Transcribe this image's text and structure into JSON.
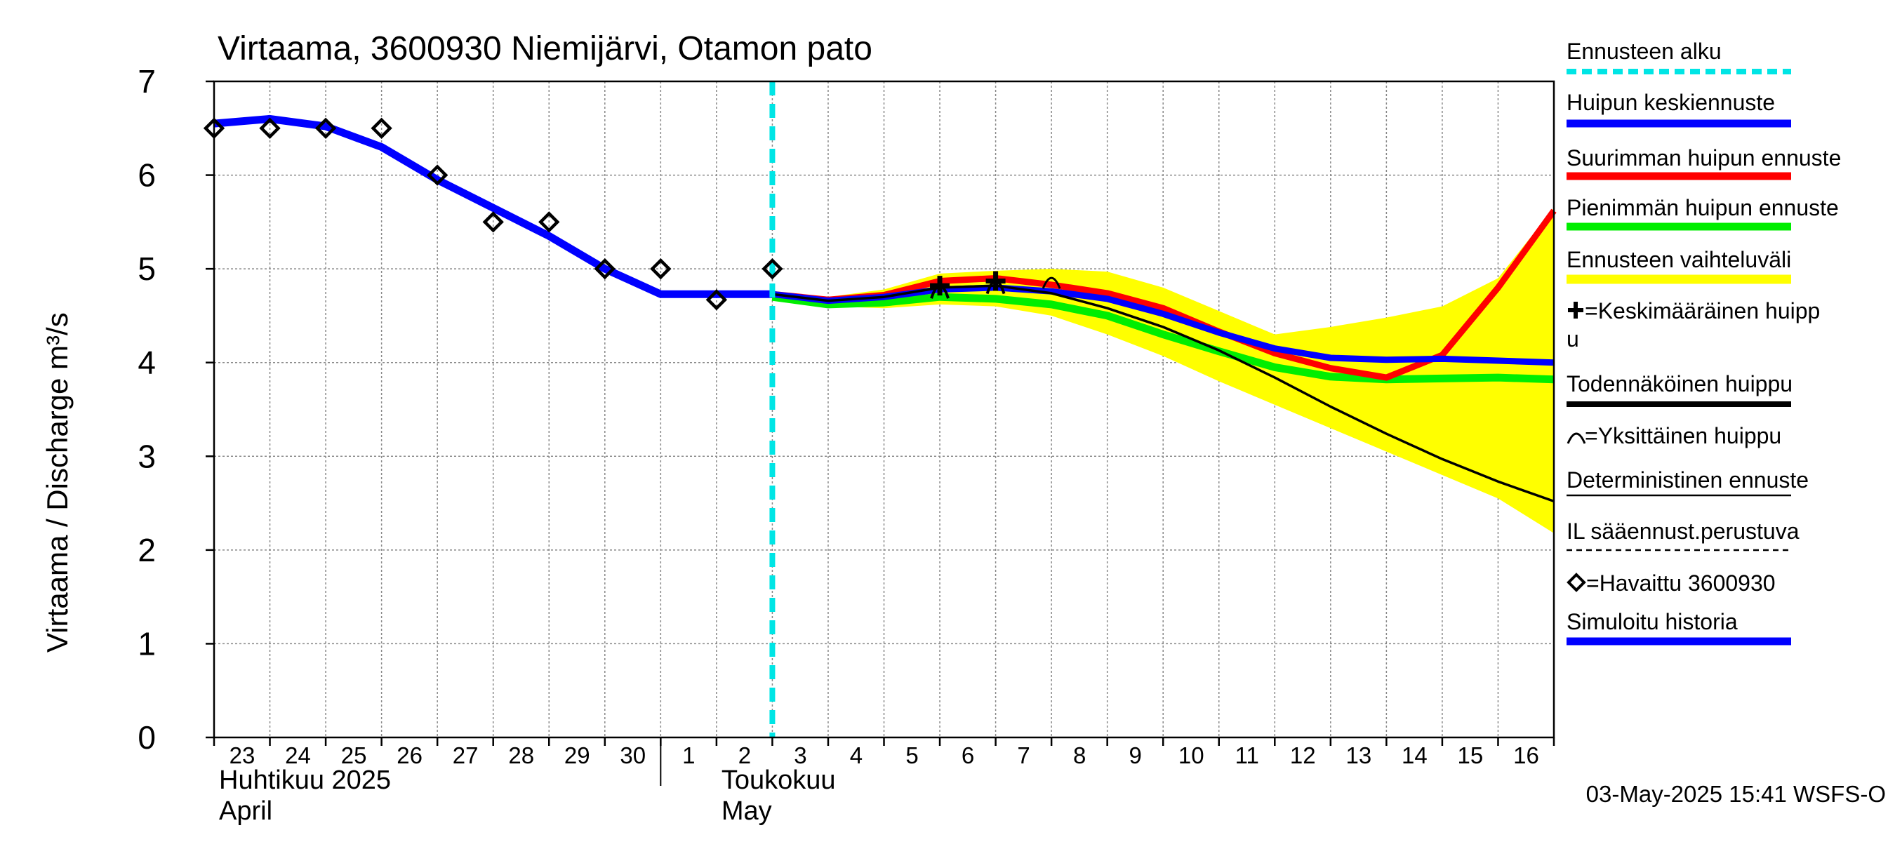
{
  "chart_data": {
    "type": "line",
    "title": "Virtaama, 3600930 Niemijärvi, Otamon pato",
    "ylabel": "Virtaama / Discharge    m³/s",
    "ylim": [
      0,
      7
    ],
    "yticks": [
      0,
      1,
      2,
      3,
      4,
      5,
      6,
      7
    ],
    "xlim": [
      23,
      47
    ],
    "x_tick_labels": [
      {
        "x": 23,
        "label": "23"
      },
      {
        "x": 24,
        "label": "24"
      },
      {
        "x": 25,
        "label": "25"
      },
      {
        "x": 26,
        "label": "26"
      },
      {
        "x": 27,
        "label": "27"
      },
      {
        "x": 28,
        "label": "28"
      },
      {
        "x": 29,
        "label": "29"
      },
      {
        "x": 30,
        "label": "30"
      },
      {
        "x": 31,
        "label": "1"
      },
      {
        "x": 32,
        "label": "2"
      },
      {
        "x": 33,
        "label": "3"
      },
      {
        "x": 34,
        "label": "4"
      },
      {
        "x": 35,
        "label": "5"
      },
      {
        "x": 36,
        "label": "6"
      },
      {
        "x": 37,
        "label": "7"
      },
      {
        "x": 38,
        "label": "8"
      },
      {
        "x": 39,
        "label": "9"
      },
      {
        "x": 40,
        "label": "10"
      },
      {
        "x": 41,
        "label": "11"
      },
      {
        "x": 42,
        "label": "12"
      },
      {
        "x": 43,
        "label": "13"
      },
      {
        "x": 44,
        "label": "14"
      },
      {
        "x": 45,
        "label": "15"
      },
      {
        "x": 46,
        "label": "16"
      }
    ],
    "month_labels": [
      {
        "x": 23,
        "line1": "Huhtikuu  2025",
        "line2": "April"
      },
      {
        "x": 32,
        "line1": "Toukokuu",
        "line2": "May"
      }
    ],
    "month_divider_x": 31,
    "forecast_start_x": 33,
    "timestamp": "03-May-2025 15:41 WSFS-O",
    "legend": [
      {
        "label": "Ennusteen alku",
        "style": "cyan-dashed"
      },
      {
        "label": "Huipun keskiennuste",
        "style": "blue-thick"
      },
      {
        "label": "Suurimman huipun ennuste",
        "style": "red-thick"
      },
      {
        "label": "Pienimmän huipun ennuste",
        "style": "green-thick"
      },
      {
        "label": "Ennusteen vaihteluväli",
        "style": "yellow-band"
      },
      {
        "label": "=Keskimääräinen huipp\nu",
        "style": "plus-marker"
      },
      {
        "label": "Todennäköinen huippu",
        "style": "black-thick"
      },
      {
        "label": "=Yksittäinen huippu",
        "style": "arc-marker"
      },
      {
        "label": "Deterministinen ennuste",
        "style": "black-thin"
      },
      {
        "label": "IL sääennust.perustuva",
        "style": "black-dashed"
      },
      {
        "label": "=Havaittu 3600930",
        "style": "diamond-marker"
      },
      {
        "label": "Simuloitu historia",
        "style": "blue-thick"
      }
    ],
    "colors": {
      "band": "#ffff00",
      "mean": "#0000ff",
      "max": "#ff0000",
      "min": "#00ee00",
      "history": "#0000ff",
      "forecast_start": "#00e5e5",
      "deterministic": "#000000",
      "grid": "#888888"
    },
    "series": [
      {
        "name": "Simuloitu historia",
        "x": [
          23,
          24,
          25,
          26,
          27,
          28,
          29,
          30,
          31,
          32,
          33
        ],
        "values": [
          6.55,
          6.6,
          6.52,
          6.3,
          5.95,
          5.65,
          5.35,
          5.0,
          4.73,
          4.73,
          4.73
        ]
      },
      {
        "name": "Huipun keskiennuste",
        "x": [
          33,
          34,
          35,
          36,
          37,
          38,
          39,
          40,
          41,
          42,
          43,
          44,
          45,
          46,
          47
        ],
        "values": [
          4.73,
          4.66,
          4.7,
          4.78,
          4.8,
          4.76,
          4.68,
          4.52,
          4.32,
          4.15,
          4.05,
          4.03,
          4.04,
          4.02,
          4.0
        ]
      },
      {
        "name": "Suurimman huipun ennuste",
        "x": [
          33,
          34,
          35,
          36,
          37,
          38,
          39,
          40,
          41,
          42,
          43,
          44,
          45,
          46,
          47
        ],
        "values": [
          4.73,
          4.67,
          4.72,
          4.87,
          4.9,
          4.83,
          4.74,
          4.58,
          4.33,
          4.1,
          3.94,
          3.84,
          4.08,
          4.8,
          5.62
        ]
      },
      {
        "name": "Pienimmän huipun ennuste",
        "x": [
          33,
          34,
          35,
          36,
          37,
          38,
          39,
          40,
          41,
          42,
          43,
          44,
          45,
          46,
          47
        ],
        "values": [
          4.7,
          4.62,
          4.64,
          4.7,
          4.68,
          4.62,
          4.5,
          4.3,
          4.12,
          3.95,
          3.85,
          3.82,
          3.83,
          3.84,
          3.82
        ]
      },
      {
        "name": "Deterministinen ennuste",
        "x": [
          33,
          34,
          35,
          36,
          37,
          38,
          39,
          40,
          41,
          42,
          43,
          44,
          45,
          46,
          47
        ],
        "values": [
          4.73,
          4.66,
          4.7,
          4.8,
          4.82,
          4.74,
          4.58,
          4.38,
          4.13,
          3.84,
          3.53,
          3.24,
          2.97,
          2.73,
          2.52
        ]
      },
      {
        "name": "Ennusteen vaihteluväli",
        "x": [
          33,
          34,
          35,
          36,
          37,
          38,
          39,
          40,
          41,
          42,
          43,
          44,
          45,
          46,
          47
        ],
        "upper": [
          4.75,
          4.7,
          4.78,
          4.95,
          4.98,
          5.0,
          4.97,
          4.8,
          4.55,
          4.3,
          4.38,
          4.48,
          4.6,
          4.9,
          5.65
        ],
        "lower": [
          4.7,
          4.6,
          4.58,
          4.62,
          4.6,
          4.5,
          4.3,
          4.07,
          3.8,
          3.55,
          3.3,
          3.05,
          2.8,
          2.55,
          2.18
        ]
      },
      {
        "name": "Havaittu 3600930",
        "x": [
          23,
          24,
          25,
          26,
          27,
          28,
          29,
          30,
          31,
          32,
          33
        ],
        "values": [
          6.5,
          6.5,
          6.5,
          6.5,
          6.0,
          5.5,
          5.5,
          5.0,
          5.0,
          4.67,
          5.0
        ]
      },
      {
        "name": "Keskimääräinen huippu",
        "x": [
          36,
          37
        ],
        "values": [
          4.82,
          4.87
        ]
      },
      {
        "name": "Yksittäinen huippu",
        "x": [
          38
        ],
        "values": [
          4.85
        ]
      }
    ]
  }
}
